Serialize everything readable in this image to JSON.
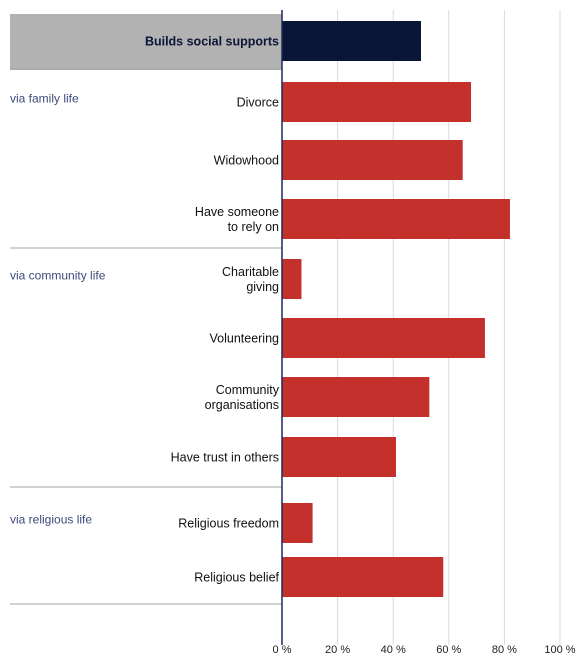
{
  "chart_data": {
    "type": "bar",
    "orientation": "horizontal",
    "categories": [
      "Builds social supports",
      "Divorce",
      "Widowhood",
      "Have someone\nto rely on",
      "Charitable\ngiving",
      "Volunteering",
      "Community\norganisations",
      "Have trust in others",
      "Religious freedom",
      "Religious belief"
    ],
    "values": [
      50,
      68,
      65,
      82,
      7,
      73,
      53,
      41,
      11,
      58
    ],
    "groups": [
      {
        "label": "via family life",
        "members": [
          "Divorce",
          "Widowhood",
          "Have someone\nto rely on"
        ]
      },
      {
        "label": "via community life",
        "members": [
          "Charitable\ngiving",
          "Volunteering",
          "Community\norganisations",
          "Have trust in others"
        ]
      },
      {
        "label": "via religious life",
        "members": [
          "Religious freedom",
          "Religious belief"
        ]
      }
    ],
    "header_category": "Builds social supports",
    "x_ticks": [
      "0 %",
      "20 %",
      "40 %",
      "60 %",
      "80 %",
      "100 %"
    ],
    "xlim": [
      0,
      100
    ],
    "grid": true,
    "legend": "none",
    "colors": {
      "header_bar": "#0b1538",
      "bar": "#c4302b",
      "header_band": "#b2b2b2",
      "grid": "#d9d9e6",
      "axis": "#1a2a5a",
      "separator": "#a6a6a6"
    }
  }
}
